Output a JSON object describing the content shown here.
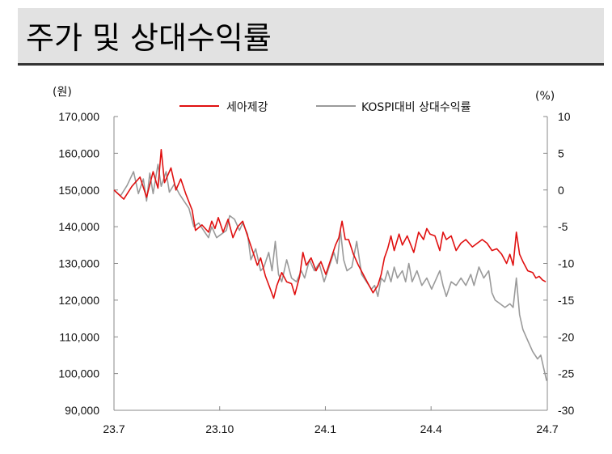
{
  "title": "주가 및 상대수익률",
  "chart_data": {
    "type": "line",
    "left_unit": "(원)",
    "right_unit": "(%)",
    "x_ticks": [
      "23.7",
      "23.10",
      "24.1",
      "24.4",
      "24.7"
    ],
    "y_left": {
      "min": 90000,
      "max": 170000,
      "ticks": [
        "90,000",
        "100,000",
        "110,000",
        "120,000",
        "130,000",
        "140,000",
        "150,000",
        "160,000",
        "170,000"
      ]
    },
    "y_right": {
      "min": -30,
      "max": 10,
      "ticks": [
        "-30",
        "-25",
        "-20",
        "-15",
        "-10",
        "-5",
        "0",
        "5",
        "10"
      ]
    },
    "legend": {
      "placement": "top"
    },
    "series": [
      {
        "name": "세아제강",
        "axis": "left",
        "color": "#e01010",
        "points": [
          [
            0,
            150000
          ],
          [
            0.3,
            147500
          ],
          [
            0.55,
            151000
          ],
          [
            0.8,
            153500
          ],
          [
            1.0,
            148000
          ],
          [
            1.2,
            155000
          ],
          [
            1.35,
            150500
          ],
          [
            1.45,
            161000
          ],
          [
            1.55,
            152000
          ],
          [
            1.75,
            156000
          ],
          [
            1.9,
            150000
          ],
          [
            2.05,
            153000
          ],
          [
            2.2,
            149000
          ],
          [
            2.4,
            144500
          ],
          [
            2.5,
            139000
          ],
          [
            2.7,
            140500
          ],
          [
            2.9,
            138500
          ],
          [
            3.0,
            141500
          ],
          [
            3.1,
            139500
          ],
          [
            3.2,
            142500
          ],
          [
            3.35,
            138500
          ],
          [
            3.5,
            142000
          ],
          [
            3.65,
            137000
          ],
          [
            3.8,
            140000
          ],
          [
            3.95,
            141500
          ],
          [
            4.1,
            137500
          ],
          [
            4.25,
            133500
          ],
          [
            4.4,
            129500
          ],
          [
            4.5,
            131500
          ],
          [
            4.65,
            126500
          ],
          [
            4.8,
            123000
          ],
          [
            4.9,
            120500
          ],
          [
            5.0,
            124000
          ],
          [
            5.15,
            127500
          ],
          [
            5.3,
            125000
          ],
          [
            5.45,
            124500
          ],
          [
            5.55,
            121500
          ],
          [
            5.7,
            126500
          ],
          [
            5.8,
            133000
          ],
          [
            5.9,
            129500
          ],
          [
            6.05,
            131500
          ],
          [
            6.2,
            128000
          ],
          [
            6.35,
            130500
          ],
          [
            6.5,
            127000
          ],
          [
            6.65,
            131000
          ],
          [
            6.8,
            135000
          ],
          [
            6.9,
            137000
          ],
          [
            7.0,
            141500
          ],
          [
            7.1,
            136500
          ],
          [
            7.2,
            136500
          ],
          [
            7.35,
            132500
          ],
          [
            7.5,
            129500
          ],
          [
            7.65,
            127000
          ],
          [
            7.8,
            124500
          ],
          [
            7.95,
            122000
          ],
          [
            8.1,
            124000
          ],
          [
            8.2,
            127000
          ],
          [
            8.3,
            131500
          ],
          [
            8.4,
            134000
          ],
          [
            8.5,
            137500
          ],
          [
            8.6,
            133500
          ],
          [
            8.75,
            138000
          ],
          [
            8.85,
            135000
          ],
          [
            9.0,
            137500
          ],
          [
            9.2,
            133000
          ],
          [
            9.35,
            138500
          ],
          [
            9.5,
            136500
          ],
          [
            9.6,
            139500
          ],
          [
            9.7,
            138000
          ],
          [
            9.85,
            137500
          ],
          [
            10.0,
            133500
          ],
          [
            10.1,
            138500
          ],
          [
            10.2,
            136500
          ],
          [
            10.35,
            137500
          ],
          [
            10.5,
            133500
          ],
          [
            10.65,
            135500
          ],
          [
            10.8,
            136500
          ],
          [
            11.0,
            134500
          ],
          [
            11.15,
            135500
          ],
          [
            11.3,
            136500
          ],
          [
            11.45,
            135500
          ],
          [
            11.6,
            133500
          ],
          [
            11.75,
            134000
          ],
          [
            11.9,
            132500
          ],
          [
            12.05,
            130000
          ],
          [
            12.15,
            132500
          ],
          [
            12.25,
            129500
          ],
          [
            12.35,
            138500
          ],
          [
            12.45,
            132500
          ],
          [
            12.55,
            130500
          ],
          [
            12.7,
            128000
          ],
          [
            12.85,
            127500
          ],
          [
            12.95,
            126000
          ],
          [
            13.05,
            126500
          ],
          [
            13.15,
            125500
          ],
          [
            13.25,
            125000
          ]
        ]
      },
      {
        "name": "KOSPI대비 상대수익률",
        "axis": "right",
        "color": "#9a9a9a",
        "points": [
          [
            0,
            0
          ],
          [
            0.2,
            -0.8
          ],
          [
            0.4,
            0.6
          ],
          [
            0.6,
            2.5
          ],
          [
            0.75,
            -0.5
          ],
          [
            0.9,
            1.5
          ],
          [
            1.0,
            -1.5
          ],
          [
            1.1,
            2.3
          ],
          [
            1.2,
            -0.5
          ],
          [
            1.35,
            3.5
          ],
          [
            1.45,
            0.5
          ],
          [
            1.6,
            2.5
          ],
          [
            1.7,
            -0.3
          ],
          [
            1.85,
            0.8
          ],
          [
            2.0,
            -0.5
          ],
          [
            2.15,
            -1.5
          ],
          [
            2.3,
            -2.5
          ],
          [
            2.45,
            -5.0
          ],
          [
            2.6,
            -4.5
          ],
          [
            2.75,
            -5.5
          ],
          [
            2.9,
            -6.5
          ],
          [
            3.0,
            -5.0
          ],
          [
            3.15,
            -6.5
          ],
          [
            3.3,
            -6.0
          ],
          [
            3.45,
            -5.5
          ],
          [
            3.55,
            -3.5
          ],
          [
            3.7,
            -4.0
          ],
          [
            3.85,
            -5.5
          ],
          [
            3.95,
            -4.5
          ],
          [
            4.1,
            -6.0
          ],
          [
            4.2,
            -9.5
          ],
          [
            4.35,
            -8.0
          ],
          [
            4.5,
            -11.0
          ],
          [
            4.6,
            -10.5
          ],
          [
            4.75,
            -8.5
          ],
          [
            4.85,
            -11.0
          ],
          [
            4.95,
            -7.0
          ],
          [
            5.05,
            -11.5
          ],
          [
            5.15,
            -12.5
          ],
          [
            5.3,
            -9.5
          ],
          [
            5.45,
            -12.0
          ],
          [
            5.6,
            -12.5
          ],
          [
            5.75,
            -11.0
          ],
          [
            5.85,
            -12.0
          ],
          [
            6.0,
            -9.5
          ],
          [
            6.15,
            -11.0
          ],
          [
            6.3,
            -10.0
          ],
          [
            6.45,
            -12.5
          ],
          [
            6.6,
            -10.5
          ],
          [
            6.75,
            -8.5
          ],
          [
            6.85,
            -10.0
          ],
          [
            6.95,
            -5.5
          ],
          [
            7.05,
            -9.5
          ],
          [
            7.15,
            -11.0
          ],
          [
            7.3,
            -10.5
          ],
          [
            7.45,
            -7.0
          ],
          [
            7.6,
            -11.5
          ],
          [
            7.75,
            -12.5
          ],
          [
            7.9,
            -13.5
          ],
          [
            8.0,
            -13.0
          ],
          [
            8.1,
            -14.5
          ],
          [
            8.2,
            -12.0
          ],
          [
            8.3,
            -12.5
          ],
          [
            8.4,
            -11.0
          ],
          [
            8.5,
            -12.5
          ],
          [
            8.6,
            -10.5
          ],
          [
            8.7,
            -12.0
          ],
          [
            8.85,
            -11.0
          ],
          [
            8.95,
            -12.5
          ],
          [
            9.05,
            -10.0
          ],
          [
            9.15,
            -12.5
          ],
          [
            9.3,
            -11.0
          ],
          [
            9.45,
            -13.0
          ],
          [
            9.6,
            -12.0
          ],
          [
            9.75,
            -13.5
          ],
          [
            9.9,
            -12.0
          ],
          [
            10.0,
            -11.0
          ],
          [
            10.1,
            -13.0
          ],
          [
            10.2,
            -14.5
          ],
          [
            10.35,
            -12.5
          ],
          [
            10.5,
            -13.0
          ],
          [
            10.65,
            -12.0
          ],
          [
            10.8,
            -13.0
          ],
          [
            10.95,
            -11.5
          ],
          [
            11.05,
            -13.0
          ],
          [
            11.2,
            -10.5
          ],
          [
            11.35,
            -12.0
          ],
          [
            11.5,
            -11.0
          ],
          [
            11.6,
            -14.0
          ],
          [
            11.7,
            -15.0
          ],
          [
            11.85,
            -15.5
          ],
          [
            12.0,
            -16.0
          ],
          [
            12.15,
            -15.5
          ],
          [
            12.25,
            -16.0
          ],
          [
            12.35,
            -12.0
          ],
          [
            12.45,
            -17.0
          ],
          [
            12.55,
            -19.0
          ],
          [
            12.7,
            -20.5
          ],
          [
            12.85,
            -22.0
          ],
          [
            13.0,
            -23.0
          ],
          [
            13.1,
            -22.5
          ],
          [
            13.2,
            -24.5
          ],
          [
            13.28,
            -26.0
          ]
        ]
      }
    ]
  }
}
